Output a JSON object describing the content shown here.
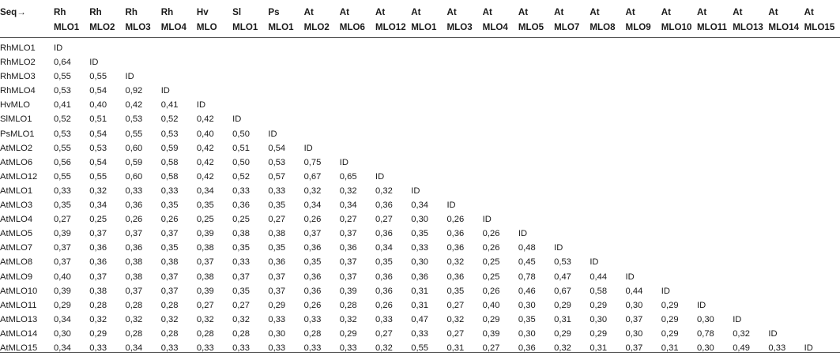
{
  "header": {
    "corner_label": "Seq→",
    "columns": [
      {
        "line1": "Rh",
        "line2": "MLO1"
      },
      {
        "line1": "Rh",
        "line2": "MLO2"
      },
      {
        "line1": "Rh",
        "line2": "MLO3"
      },
      {
        "line1": "Rh",
        "line2": "MLO4"
      },
      {
        "line1": "Hv",
        "line2": "MLO"
      },
      {
        "line1": "Sl",
        "line2": "MLO1"
      },
      {
        "line1": "Ps",
        "line2": "MLO1"
      },
      {
        "line1": "At",
        "line2": "MLO2"
      },
      {
        "line1": "At",
        "line2": "MLO6"
      },
      {
        "line1": "At",
        "line2": "MLO12"
      },
      {
        "line1": "At",
        "line2": "MLO1"
      },
      {
        "line1": "At",
        "line2": "MLO3"
      },
      {
        "line1": "At",
        "line2": "MLO4"
      },
      {
        "line1": "At",
        "line2": "MLO5"
      },
      {
        "line1": "At",
        "line2": "MLO7"
      },
      {
        "line1": "At",
        "line2": "MLO8"
      },
      {
        "line1": "At",
        "line2": "MLO9"
      },
      {
        "line1": "At",
        "line2": "MLO10"
      },
      {
        "line1": "At",
        "line2": "MLO11"
      },
      {
        "line1": "At",
        "line2": "MLO13"
      },
      {
        "line1": "At",
        "line2": "MLO14"
      },
      {
        "line1": "At",
        "line2": "MLO15"
      }
    ]
  },
  "rows": [
    {
      "label": "RhMLO1",
      "values": [
        "ID"
      ]
    },
    {
      "label": "RhMLO2",
      "values": [
        "0,64",
        "ID"
      ]
    },
    {
      "label": "RhMLO3",
      "values": [
        "0,55",
        "0,55",
        "ID"
      ]
    },
    {
      "label": "RhMLO4",
      "values": [
        "0,53",
        "0,54",
        "0,92",
        "ID"
      ]
    },
    {
      "label": "HvMLO",
      "values": [
        "0,41",
        "0,40",
        "0,42",
        "0,41",
        "ID"
      ]
    },
    {
      "label": "SlMLO1",
      "values": [
        "0,52",
        "0,51",
        "0,53",
        "0,52",
        "0,42",
        "ID"
      ]
    },
    {
      "label": "PsMLO1",
      "values": [
        "0,53",
        "0,54",
        "0,55",
        "0,53",
        "0,40",
        "0,50",
        "ID"
      ]
    },
    {
      "label": "AtMLO2",
      "values": [
        "0,55",
        "0,53",
        "0,60",
        "0,59",
        "0,42",
        "0,51",
        "0,54",
        "ID"
      ]
    },
    {
      "label": "AtMLO6",
      "values": [
        "0,56",
        "0,54",
        "0,59",
        "0,58",
        "0,42",
        "0,50",
        "0,53",
        "0,75",
        "ID"
      ]
    },
    {
      "label": "AtMLO12",
      "values": [
        "0,55",
        "0,55",
        "0,60",
        "0,58",
        "0,42",
        "0,52",
        "0,57",
        "0,67",
        "0,65",
        "ID"
      ]
    },
    {
      "label": "AtMLO1",
      "values": [
        "0,33",
        "0,32",
        "0,33",
        "0,33",
        "0,34",
        "0,33",
        "0,33",
        "0,32",
        "0,32",
        "0,32",
        "ID"
      ]
    },
    {
      "label": "AtMLO3",
      "values": [
        "0,35",
        "0,34",
        "0,36",
        "0,35",
        "0,35",
        "0,36",
        "0,35",
        "0,34",
        "0,34",
        "0,36",
        "0,34",
        "ID"
      ]
    },
    {
      "label": "AtMLO4",
      "values": [
        "0,27",
        "0,25",
        "0,26",
        "0,26",
        "0,25",
        "0,25",
        "0,27",
        "0,26",
        "0,27",
        "0,27",
        "0,30",
        "0,26",
        "ID"
      ]
    },
    {
      "label": "AtMLO5",
      "values": [
        "0,39",
        "0,37",
        "0,37",
        "0,37",
        "0,39",
        "0,38",
        "0,38",
        "0,37",
        "0,37",
        "0,36",
        "0,35",
        "0,36",
        "0,26",
        "ID"
      ]
    },
    {
      "label": "AtMLO7",
      "values": [
        "0,37",
        "0,36",
        "0,36",
        "0,35",
        "0,38",
        "0,35",
        "0,35",
        "0,36",
        "0,36",
        "0,34",
        "0,33",
        "0,36",
        "0,26",
        "0,48",
        "ID"
      ]
    },
    {
      "label": "AtMLO8",
      "values": [
        "0,37",
        "0,36",
        "0,38",
        "0,38",
        "0,37",
        "0,33",
        "0,36",
        "0,35",
        "0,37",
        "0,35",
        "0,30",
        "0,32",
        "0,25",
        "0,45",
        "0,53",
        "ID"
      ]
    },
    {
      "label": "AtMLO9",
      "values": [
        "0,40",
        "0,37",
        "0,38",
        "0,37",
        "0,38",
        "0,37",
        "0,37",
        "0,36",
        "0,37",
        "0,36",
        "0,36",
        "0,36",
        "0,25",
        "0,78",
        "0,47",
        "0,44",
        "ID"
      ]
    },
    {
      "label": "AtMLO10",
      "values": [
        "0,39",
        "0,38",
        "0,37",
        "0,37",
        "0,39",
        "0,35",
        "0,37",
        "0,36",
        "0,39",
        "0,36",
        "0,31",
        "0,35",
        "0,26",
        "0,46",
        "0,67",
        "0,58",
        "0,44",
        "ID"
      ]
    },
    {
      "label": "AtMLO11",
      "values": [
        "0,29",
        "0,28",
        "0,28",
        "0,28",
        "0,27",
        "0,27",
        "0,29",
        "0,26",
        "0,28",
        "0,26",
        "0,31",
        "0,27",
        "0,40",
        "0,30",
        "0,29",
        "0,29",
        "0,30",
        "0,29",
        "ID"
      ]
    },
    {
      "label": "AtMLO13",
      "values": [
        "0,34",
        "0,32",
        "0,32",
        "0,32",
        "0,32",
        "0,32",
        "0,33",
        "0,33",
        "0,32",
        "0,33",
        "0,47",
        "0,32",
        "0,29",
        "0,35",
        "0,31",
        "0,30",
        "0,37",
        "0,29",
        "0,30",
        "ID"
      ]
    },
    {
      "label": "AtMLO14",
      "values": [
        "0,30",
        "0,29",
        "0,28",
        "0,28",
        "0,28",
        "0,28",
        "0,30",
        "0,28",
        "0,29",
        "0,27",
        "0,33",
        "0,27",
        "0,39",
        "0,30",
        "0,29",
        "0,29",
        "0,30",
        "0,29",
        "0,78",
        "0,32",
        "ID"
      ]
    },
    {
      "label": "AtMLO15",
      "values": [
        "0,34",
        "0,33",
        "0,34",
        "0,33",
        "0,33",
        "0,33",
        "0,33",
        "0,33",
        "0,33",
        "0,32",
        "0,55",
        "0,31",
        "0,27",
        "0,36",
        "0,32",
        "0,31",
        "0,37",
        "0,31",
        "0,30",
        "0,49",
        "0,33",
        "ID"
      ]
    }
  ]
}
